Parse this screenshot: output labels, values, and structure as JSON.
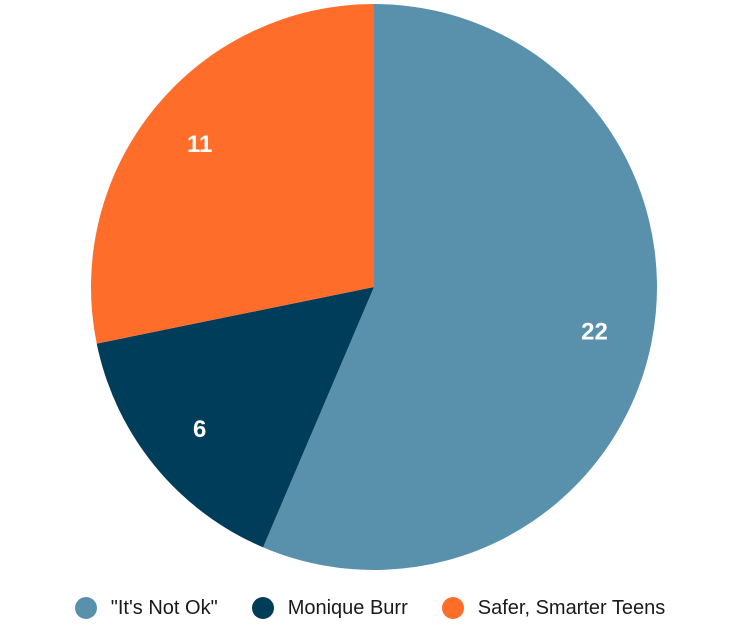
{
  "chart_data": {
    "type": "pie",
    "title": "",
    "start_angle_deg": 0,
    "direction": "clockwise",
    "legend_position": "bottom",
    "slices": [
      {
        "label": "\"It's Not Ok\"",
        "value": 22,
        "color": "#5991ac"
      },
      {
        "label": "Monique Burr",
        "value": 6,
        "color": "#003d5a"
      },
      {
        "label": "Safer, Smarter Teens",
        "value": 11,
        "color": "#ff6d2b"
      }
    ]
  }
}
